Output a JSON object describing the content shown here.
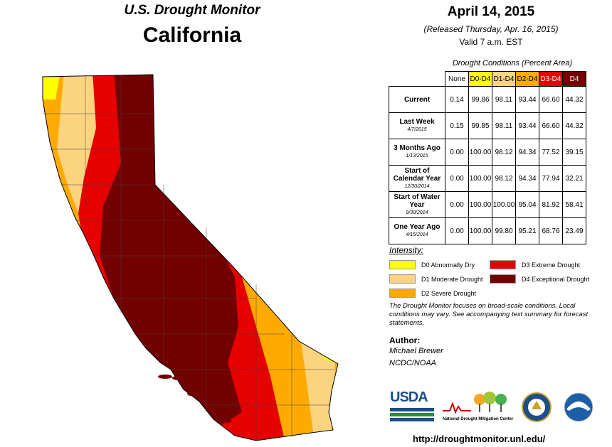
{
  "header": {
    "title": "U.S. Drought Monitor",
    "state": "California",
    "date": "April 14, 2015",
    "released": "(Released Thursday, Apr. 16, 2015)",
    "valid": "Valid 7 a.m. EST"
  },
  "table": {
    "caption": "Drought Conditions (Percent Area)",
    "columns": [
      "None",
      "D0-D4",
      "D1-D4",
      "D2-D4",
      "D3-D4",
      "D4"
    ],
    "column_colors": [
      "#ffffff",
      "#ffff00",
      "#fcd37f",
      "#ffaa00",
      "#e60000",
      "#730000"
    ],
    "column_text_colors": [
      "#000000",
      "#000000",
      "#000000",
      "#000000",
      "#ffffff",
      "#ffffff"
    ],
    "rows": [
      {
        "label": "Current",
        "sub": "",
        "values": [
          "0.14",
          "99.86",
          "98.11",
          "93.44",
          "66.60",
          "44.32"
        ]
      },
      {
        "label": "Last Week",
        "sub": "4/7/2015",
        "values": [
          "0.15",
          "99.85",
          "98.11",
          "93.44",
          "66.60",
          "44.32"
        ]
      },
      {
        "label": "3 Months Ago",
        "sub": "1/13/2015",
        "values": [
          "0.00",
          "100.00",
          "98.12",
          "94.34",
          "77.52",
          "39.15"
        ]
      },
      {
        "label": "Start of Calendar Year",
        "sub": "12/30/2014",
        "values": [
          "0.00",
          "100.00",
          "98.12",
          "94.34",
          "77.94",
          "32.21"
        ]
      },
      {
        "label": "Start of Water Year",
        "sub": "9/30/2014",
        "values": [
          "0.00",
          "100.00",
          "100.00",
          "95.04",
          "81.92",
          "58.41"
        ]
      },
      {
        "label": "One Year Ago",
        "sub": "4/15/2014",
        "values": [
          "0.00",
          "100.00",
          "99.80",
          "95.21",
          "68.76",
          "23.49"
        ]
      }
    ]
  },
  "legend": {
    "title": "Intensity:",
    "items": [
      {
        "label": "D0 Abnormally Dry",
        "color": "#ffff00"
      },
      {
        "label": "D1 Moderate Drought",
        "color": "#fcd37f"
      },
      {
        "label": "D2 Severe Drought",
        "color": "#ffaa00"
      },
      {
        "label": "D3 Extreme Drought",
        "color": "#e60000"
      },
      {
        "label": "D4 Exceptional Drought",
        "color": "#730000"
      }
    ]
  },
  "note": "The Drought Monitor focuses on broad-scale conditions. Local conditions may vary. See accompanying text summary for forecast statements.",
  "author": {
    "label": "Author:",
    "name": "Michael Brewer",
    "org": "NCDC/NOAA"
  },
  "logos": {
    "usda": "USDA",
    "ndmc": "National Drought Mitigation Center"
  },
  "url": "http://droughtmonitor.unl.edu/"
}
